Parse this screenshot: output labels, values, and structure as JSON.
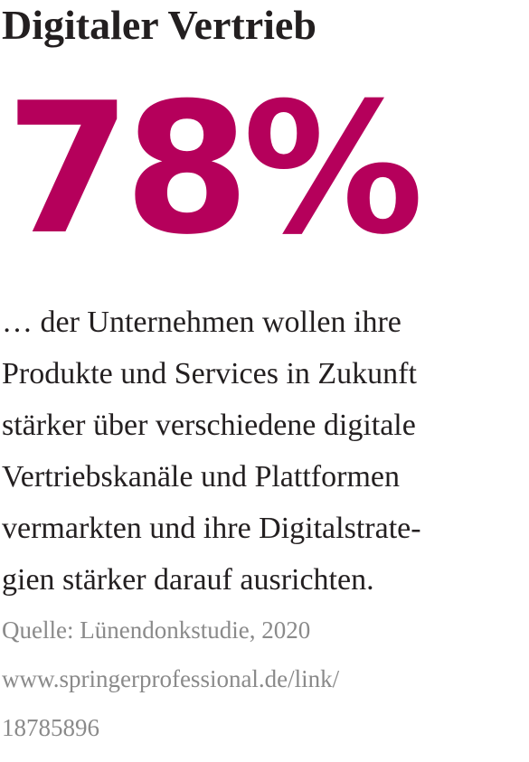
{
  "headline": "Digitaler Vertrieb",
  "stat": {
    "value": "78%"
  },
  "body": {
    "lines": [
      "… der Unternehmen wollen ihre",
      "Produkte und Services in Zukunft",
      "stärker über verschiedene digitale",
      "Vertriebskanäle und Plattformen",
      "vermarkten und ihre Digitalstrate-",
      "gien stärker darauf ausrichten."
    ]
  },
  "source": {
    "lines": [
      "Quelle: Lünendonkstudie, 2020",
      "www.springerprofessional.de/link/",
      "18785896"
    ]
  },
  "colors": {
    "accent": "#b5005b",
    "text": "#231f20",
    "muted": "#8a8a8a"
  }
}
